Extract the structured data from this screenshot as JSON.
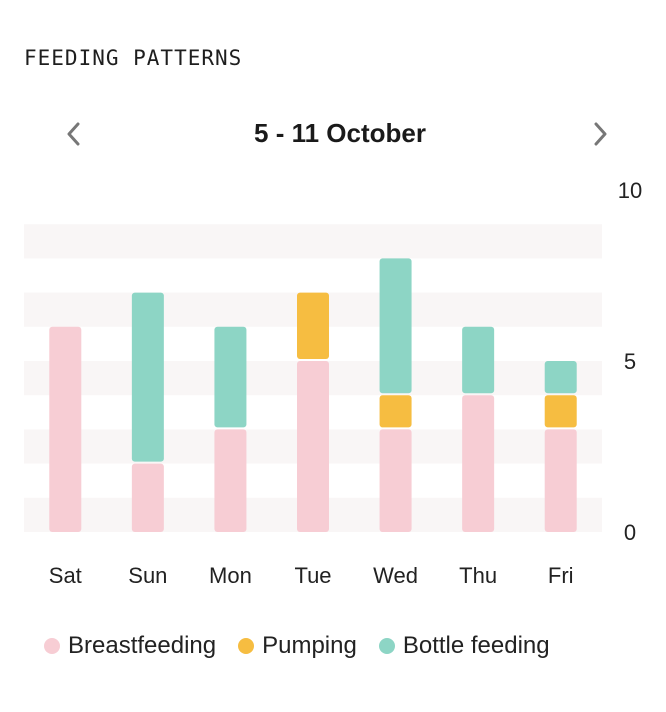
{
  "header": {
    "section_title": "FEEDING PATTERNS"
  },
  "nav": {
    "title": "5 - 11 October",
    "prev_icon": "chevron-left-icon",
    "next_icon": "chevron-right-icon"
  },
  "chart_data": {
    "type": "bar",
    "stacked": true,
    "categories": [
      "Sat",
      "Sun",
      "Mon",
      "Tue",
      "Wed",
      "Thu",
      "Fri"
    ],
    "series": [
      {
        "name": "Breastfeeding",
        "color": "#f7cdd4",
        "values": [
          6,
          2,
          3,
          5,
          3,
          4,
          3
        ]
      },
      {
        "name": "Pumping",
        "color": "#f6bd41",
        "values": [
          0,
          0,
          0,
          2,
          1,
          0,
          1
        ]
      },
      {
        "name": "Bottle feeding",
        "color": "#8dd5c5",
        "values": [
          0,
          5,
          3,
          0,
          4,
          2,
          1
        ]
      }
    ],
    "ylim": [
      0,
      10
    ],
    "yticks": [
      0,
      5,
      10
    ],
    "y_axis_side": "right",
    "grid": "alternating-bands",
    "legend": "bottom"
  }
}
